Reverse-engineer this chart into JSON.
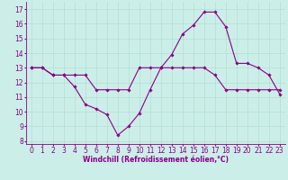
{
  "xlabel": "Windchill (Refroidissement éolien,°C)",
  "background_color": "#cceee8",
  "line_color": "#880088",
  "xlim": [
    -0.5,
    23.5
  ],
  "ylim": [
    7.8,
    17.5
  ],
  "yticks": [
    8,
    9,
    10,
    11,
    12,
    13,
    14,
    15,
    16,
    17
  ],
  "xticks": [
    0,
    1,
    2,
    3,
    4,
    5,
    6,
    7,
    8,
    9,
    10,
    11,
    12,
    13,
    14,
    15,
    16,
    17,
    18,
    19,
    20,
    21,
    22,
    23
  ],
  "curve1_x": [
    0,
    1,
    2,
    3,
    4,
    5,
    6,
    7,
    8,
    9,
    10,
    11,
    12,
    13,
    14,
    15,
    16,
    17,
    18,
    19,
    20,
    21,
    22,
    23
  ],
  "curve1_y": [
    13.0,
    13.0,
    12.5,
    12.5,
    11.7,
    10.5,
    10.2,
    9.8,
    8.4,
    9.0,
    9.9,
    11.5,
    13.0,
    13.9,
    15.3,
    15.9,
    16.8,
    16.8,
    15.8,
    13.3,
    13.3,
    13.0,
    12.5,
    11.2
  ],
  "curve2_x": [
    0,
    1,
    2,
    3,
    4,
    5,
    6,
    7,
    8,
    9,
    10,
    11,
    12,
    13,
    14,
    15,
    16,
    17,
    18,
    19,
    20,
    21,
    22,
    23
  ],
  "curve2_y": [
    13.0,
    13.0,
    12.5,
    12.5,
    12.5,
    12.5,
    11.5,
    11.5,
    11.5,
    11.5,
    13.0,
    13.0,
    13.0,
    13.0,
    13.0,
    13.0,
    13.0,
    12.5,
    11.5,
    11.5,
    11.5,
    11.5,
    11.5,
    11.5
  ],
  "marker": "D",
  "markersize": 1.8,
  "linewidth": 0.8,
  "grid_color": "#aaddcc",
  "tick_fontsize": 5.5,
  "xlabel_fontsize": 5.5
}
